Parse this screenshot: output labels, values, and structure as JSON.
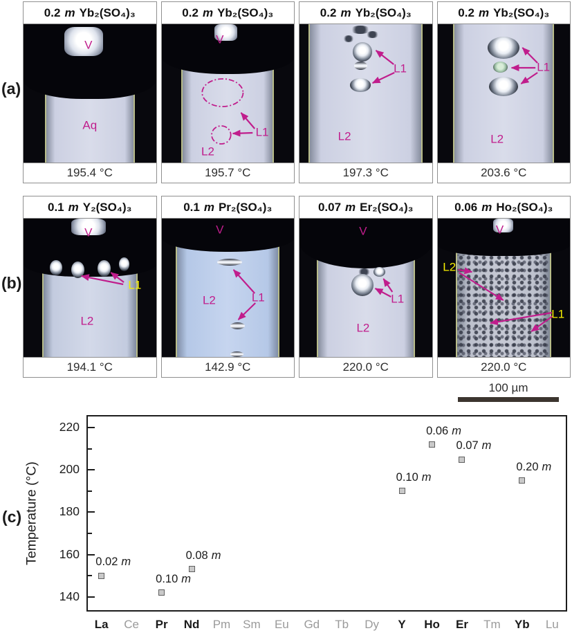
{
  "figure": {
    "label_a": "(a)",
    "label_b": "(b)",
    "label_c": "(c)",
    "scale_bar_label": "100 µm"
  },
  "colors": {
    "annotation_magenta": "#c01d8c",
    "annotation_yellow": "#f6ee00",
    "marker_fill": "#c9c9c9",
    "marker_border": "#5f5f5f",
    "element_muted": "#9a9a9a",
    "element_emphasized": "#1a1a1a"
  },
  "row_a": [
    {
      "conc": "0.2",
      "unit": "m",
      "formula": "Yb₂(SO₄)₃",
      "temperature": "195.4 °C",
      "labels": {
        "v": "V",
        "aq": "Aq"
      }
    },
    {
      "conc": "0.2",
      "unit": "m",
      "formula": "Yb₂(SO₄)₃",
      "temperature": "195.7 °C",
      "labels": {
        "v": "V",
        "l1": "L1",
        "l2": "L2"
      }
    },
    {
      "conc": "0.2",
      "unit": "m",
      "formula": "Yb₂(SO₄)₃",
      "temperature": "197.3 °C",
      "labels": {
        "l1": "L1",
        "l2": "L2"
      }
    },
    {
      "conc": "0.2",
      "unit": "m",
      "formula": "Yb₂(SO₄)₃",
      "temperature": "203.6 °C",
      "labels": {
        "l1": "L1",
        "l2": "L2"
      }
    }
  ],
  "row_b": [
    {
      "conc": "0.1",
      "unit": "m",
      "formula": "Y₂(SO₄)₃",
      "temperature": "194.1 °C",
      "labels": {
        "v": "V",
        "l1": "L1",
        "l2": "L2"
      }
    },
    {
      "conc": "0.1",
      "unit": "m",
      "formula": "Pr₂(SO₄)₃",
      "temperature": "142.9 °C",
      "labels": {
        "v": "V",
        "l1": "L1",
        "l2": "L2"
      }
    },
    {
      "conc": "0.07",
      "unit": "m",
      "formula": "Er₂(SO₄)₃",
      "temperature": "220.0 °C",
      "labels": {
        "v": "V",
        "l1": "L1",
        "l2": "L2"
      }
    },
    {
      "conc": "0.06",
      "unit": "m",
      "formula": "Ho₂(SO₄)₃",
      "temperature": "220.0 °C",
      "labels": {
        "v": "V",
        "l1": "L1",
        "l2": "L2"
      }
    }
  ],
  "chart_data": {
    "type": "scatter",
    "title": "",
    "xlabel": "",
    "ylabel": "Temperature (°C)",
    "categories": [
      "La",
      "Ce",
      "Pr",
      "Nd",
      "Pm",
      "Sm",
      "Eu",
      "Gd",
      "Tb",
      "Dy",
      "Y",
      "Ho",
      "Er",
      "Tm",
      "Yb",
      "Lu"
    ],
    "emphasized_categories": [
      "La",
      "Pr",
      "Nd",
      "Y",
      "Ho",
      "Er",
      "Yb"
    ],
    "yticks": [
      140,
      160,
      180,
      200,
      220
    ],
    "ylim": [
      133,
      226
    ],
    "grid": false,
    "legend": false,
    "points": [
      {
        "element": "La",
        "conc": "0.02",
        "unit": "m",
        "temperature": 150
      },
      {
        "element": "Pr",
        "conc": "0.10",
        "unit": "m",
        "temperature": 142
      },
      {
        "element": "Nd",
        "conc": "0.08",
        "unit": "m",
        "temperature": 153
      },
      {
        "element": "Y",
        "conc": "0.10",
        "unit": "m",
        "temperature": 190
      },
      {
        "element": "Ho",
        "conc": "0.06",
        "unit": "m",
        "temperature": 212
      },
      {
        "element": "Er",
        "conc": "0.07",
        "unit": "m",
        "temperature": 205
      },
      {
        "element": "Yb",
        "conc": "0.20",
        "unit": "m",
        "temperature": 195
      }
    ]
  }
}
